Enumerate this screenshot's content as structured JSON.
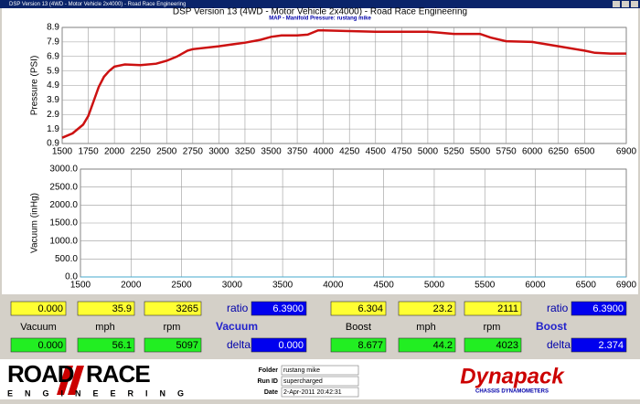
{
  "window": {
    "title": "DSP Version 13 (4WD - Motor Vehicle 2x4000) - Road Race Engineering"
  },
  "chart_data": [
    {
      "type": "line",
      "title": "DSP Version 13 (4WD - Motor Vehicle 2x4000) - Road Race Engineering",
      "subtitle": "MAP - Manifold Pressure: rustang mike",
      "y_label": "Pressure (PSI)",
      "x": [
        1500,
        1600,
        1700,
        1750,
        1800,
        1850,
        1900,
        1950,
        2000,
        2100,
        2250,
        2400,
        2500,
        2600,
        2700,
        2750,
        3000,
        3100,
        3250,
        3400,
        3500,
        3600,
        3750,
        3850,
        3950,
        4000,
        4250,
        4500,
        4750,
        5000,
        5100,
        5250,
        5500,
        5600,
        5750,
        6000,
        6250,
        6500,
        6600,
        6750,
        6900
      ],
      "values": [
        1.3,
        1.6,
        2.2,
        2.8,
        3.8,
        4.8,
        5.5,
        5.9,
        6.2,
        6.35,
        6.3,
        6.4,
        6.6,
        6.9,
        7.3,
        7.4,
        7.6,
        7.7,
        7.85,
        8.05,
        8.25,
        8.35,
        8.35,
        8.4,
        8.7,
        8.7,
        8.65,
        8.6,
        8.6,
        8.6,
        8.55,
        8.45,
        8.45,
        8.2,
        7.95,
        7.9,
        7.6,
        7.3,
        7.15,
        7.1,
        7.1
      ],
      "color": "#cc1111",
      "xlim": [
        1500,
        6900
      ],
      "ylim": [
        0.9,
        8.9
      ],
      "xticks": [
        1500,
        1750,
        2000,
        2250,
        2500,
        2750,
        3000,
        3250,
        3500,
        3750,
        4000,
        4250,
        4500,
        4750,
        5000,
        5250,
        5500,
        5750,
        6000,
        6250,
        6500,
        6900
      ],
      "yticks": [
        0.9,
        1.9,
        2.9,
        3.9,
        4.9,
        5.9,
        6.9,
        7.9,
        8.9
      ],
      "grid": true
    },
    {
      "type": "line",
      "y_label": "Vacuum (inHg)",
      "x": [
        1500,
        6900
      ],
      "values": [
        0,
        0
      ],
      "color": "#44aacc",
      "xlim": [
        1500,
        6900
      ],
      "ylim": [
        0,
        3000
      ],
      "xticks": [
        1500,
        2000,
        2500,
        3000,
        3500,
        4000,
        4500,
        5000,
        5500,
        6000,
        6500,
        6900
      ],
      "yticks": [
        {
          "value": 0,
          "label": "0.0"
        },
        {
          "value": 500,
          "label": "500.0"
        },
        {
          "value": 1000,
          "label": "1000.0"
        },
        {
          "value": 1500,
          "label": "1500.0"
        },
        {
          "value": 2000,
          "label": "2000.0"
        },
        {
          "value": 2500,
          "label": "2500.0"
        },
        {
          "value": 3000,
          "label": "3000.0"
        }
      ],
      "grid": true
    }
  ],
  "panels": [
    {
      "top": [
        "0.000",
        "35.9",
        "3265",
        "ratio",
        "6.3900"
      ],
      "labels": [
        "Vacuum",
        "mph",
        "rpm",
        "Vacuum"
      ],
      "bottom": [
        "0.000",
        "56.1",
        "5097",
        "delta",
        "0.000"
      ]
    },
    {
      "top": [
        "6.304",
        "23.2",
        "2111",
        "ratio",
        "6.3900"
      ],
      "labels": [
        "Boost",
        "mph",
        "rpm",
        "Boost"
      ],
      "bottom": [
        "8.677",
        "44.2",
        "4023",
        "delta",
        "2.374"
      ]
    }
  ],
  "footer": {
    "logo": [
      "ROAD",
      "RACE",
      "ENGINEERING"
    ],
    "fields": [
      [
        "Folder",
        "rustang mike"
      ],
      [
        "Run ID",
        "supercharged"
      ],
      [
        "Date",
        "2-Apr-2011 20:42:31"
      ]
    ],
    "brand": "Dynapack",
    "brand_sub": "CHASSIS DYNAMOMETERS"
  }
}
